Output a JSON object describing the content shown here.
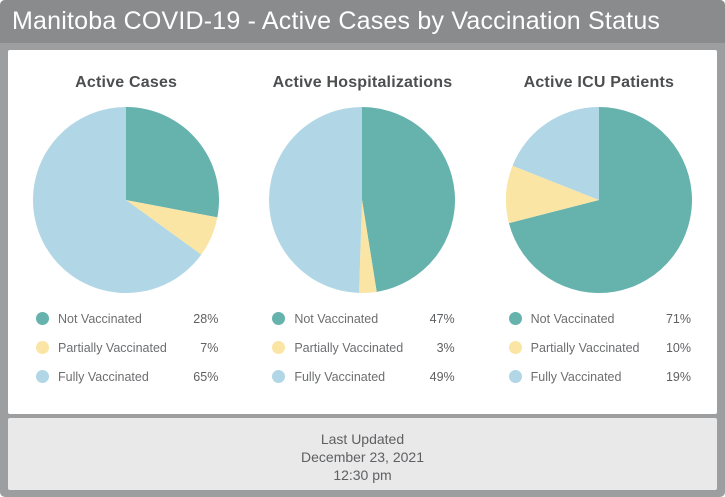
{
  "header": {
    "title": "Manitoba COVID-19 - Active Cases by Vaccination Status"
  },
  "colors": {
    "not_vaccinated": "#66b2ad",
    "partially_vaccinated": "#fae5a4",
    "fully_vaccinated": "#b1d6e6",
    "header_bg": "#8a8b8d",
    "page_bg": "#9d9ea0",
    "panel_bg": "#ffffff",
    "footer_bg": "#e9e9ea"
  },
  "chart_data": [
    {
      "type": "pie",
      "title": "Active Cases",
      "categories": [
        "Not Vaccinated",
        "Partially Vaccinated",
        "Fully Vaccinated"
      ],
      "values": [
        28,
        7,
        65
      ],
      "labels": [
        "28%",
        "7%",
        "65%"
      ],
      "legend_position": "bottom",
      "start_angle": "top",
      "direction": "clockwise"
    },
    {
      "type": "pie",
      "title": "Active Hospitalizations",
      "categories": [
        "Not Vaccinated",
        "Partially Vaccinated",
        "Fully Vaccinated"
      ],
      "values": [
        47,
        3,
        49
      ],
      "labels": [
        "47%",
        "3%",
        "49%"
      ],
      "legend_position": "bottom",
      "start_angle": "top",
      "direction": "clockwise"
    },
    {
      "type": "pie",
      "title": "Active ICU Patients",
      "categories": [
        "Not Vaccinated",
        "Partially Vaccinated",
        "Fully Vaccinated"
      ],
      "values": [
        71,
        10,
        19
      ],
      "labels": [
        "71%",
        "10%",
        "19%"
      ],
      "legend_position": "bottom",
      "start_angle": "top",
      "direction": "clockwise"
    }
  ],
  "footer": {
    "line1": "Last Updated",
    "line2": "December 23, 2021",
    "line3": "12:30 pm"
  }
}
